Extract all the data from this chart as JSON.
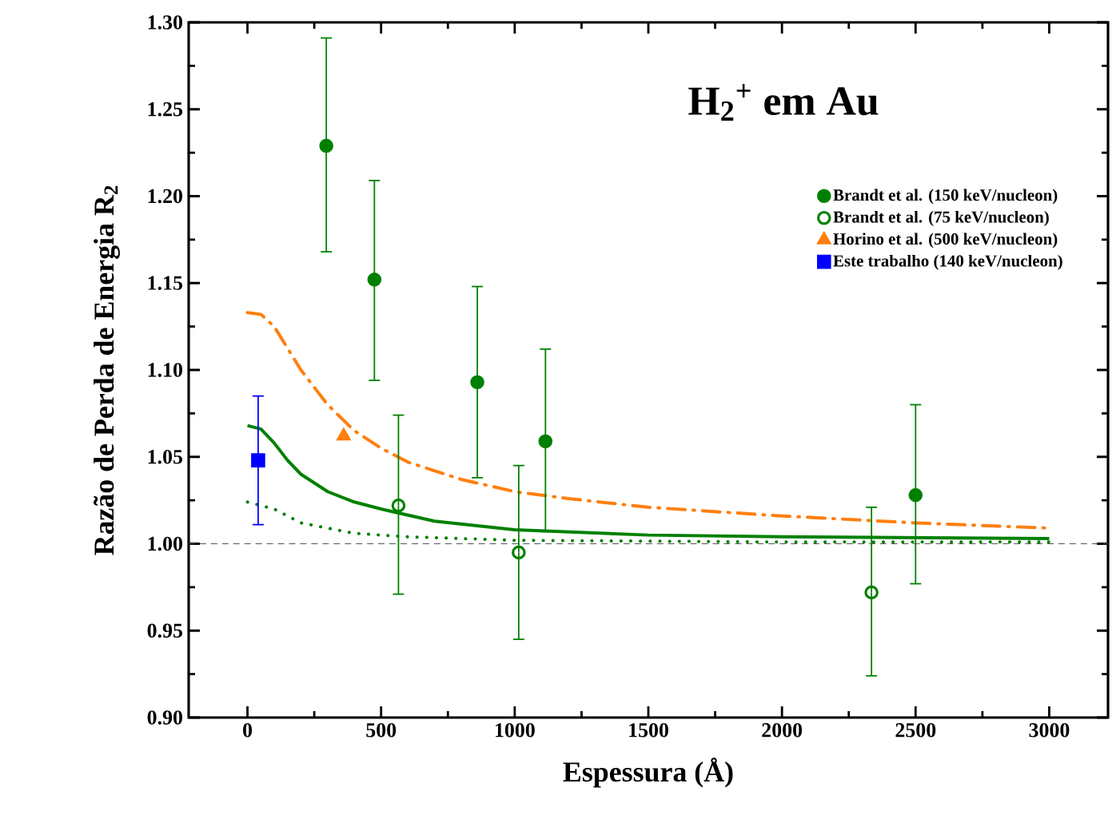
{
  "chart_data": {
    "type": "scatter",
    "title": "H$_{2}$$^{+}$ em Au",
    "xlabel": "Espessura (Å)",
    "ylabel": "Razão de Perda de Energia R$_{2}$",
    "xlim": [
      -220,
      3220
    ],
    "ylim": [
      0.9,
      1.3
    ],
    "xticks": [
      0,
      500,
      1000,
      1500,
      2000,
      2500,
      3000
    ],
    "yticks": [
      {
        "value": 0.9,
        "label": "0.90"
      },
      {
        "value": 0.95,
        "label": "0.95"
      },
      {
        "value": 1.0,
        "label": "1.00"
      },
      {
        "value": 1.05,
        "label": "1.05"
      },
      {
        "value": 1.1,
        "label": "1.10"
      },
      {
        "value": 1.15,
        "label": "1.15"
      },
      {
        "value": 1.2,
        "label": "1.20"
      },
      {
        "value": 1.25,
        "label": "1.25"
      },
      {
        "value": 1.3,
        "label": "1.30"
      }
    ],
    "legend": "top right",
    "ref_lines": [
      {
        "axis": "y",
        "value": 1.0,
        "color": "#555555",
        "line_style": "dashed"
      }
    ],
    "series": [
      {
        "type": "line",
        "color": "#ff7f0e",
        "line_style": "dashdot",
        "x": [
          0,
          50,
          100,
          200,
          300,
          400,
          500,
          600,
          800,
          1000,
          1200,
          1500,
          2000,
          2500,
          3000
        ],
        "values": [
          1.133,
          1.132,
          1.125,
          1.1,
          1.08,
          1.065,
          1.055,
          1.047,
          1.037,
          1.03,
          1.026,
          1.021,
          1.016,
          1.012,
          1.009
        ]
      },
      {
        "type": "line",
        "color": "#008000",
        "line_style": "solid",
        "x": [
          0,
          50,
          100,
          150,
          200,
          300,
          400,
          500,
          700,
          1000,
          1500,
          2000,
          3000
        ],
        "values": [
          1.068,
          1.066,
          1.058,
          1.048,
          1.04,
          1.03,
          1.024,
          1.02,
          1.013,
          1.008,
          1.005,
          1.004,
          1.003
        ]
      },
      {
        "type": "line",
        "color": "#008000",
        "line_style": "dotted",
        "x": [
          0,
          100,
          200,
          400,
          600,
          1000,
          2000,
          3000
        ],
        "values": [
          1.024,
          1.02,
          1.012,
          1.006,
          1.004,
          1.002,
          1.001,
          1.001
        ]
      },
      {
        "name": "Brandt et al. (150 keV/nucleon)",
        "color": "#008000",
        "marker": "circle",
        "x": [
          295,
          475,
          860,
          1115,
          2500
        ],
        "values": [
          1.229,
          1.152,
          1.093,
          1.059,
          1.028
        ],
        "errors": [
          [
            1.168,
            1.291
          ],
          [
            1.094,
            1.209
          ],
          [
            1.038,
            1.148
          ],
          [
            1.007,
            1.112
          ],
          [
            0.977,
            1.08
          ]
        ]
      },
      {
        "name": "Brandt et al. (75 keV/nucleon)",
        "color": "#008000",
        "marker": "circle-open",
        "x": [
          565,
          1015,
          2335
        ],
        "values": [
          1.022,
          0.995,
          0.972
        ],
        "errors": [
          [
            0.971,
            1.074
          ],
          [
            0.945,
            1.045
          ],
          [
            0.924,
            1.021
          ]
        ]
      },
      {
        "name": "Horino et al. (500 keV/nucleon)",
        "color": "#ff7f0e",
        "marker": "triangle",
        "x": [
          360
        ],
        "values": [
          1.062
        ]
      },
      {
        "name": "Este trabalho (140 keV/nucleon)",
        "color": "#0000ff",
        "marker": "square",
        "x": [
          40
        ],
        "values": [
          1.048
        ],
        "errors": [
          [
            1.011,
            1.085
          ]
        ]
      }
    ]
  }
}
